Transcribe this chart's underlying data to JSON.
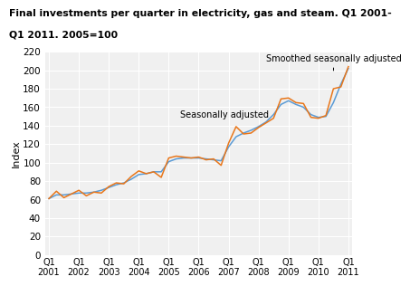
{
  "title_line1": "Final investments per quarter in electricity, gas and steam. Q1 2001-",
  "title_line2": "Q1 2011. 2005=100",
  "ylabel": "Index",
  "xlim": [
    -0.5,
    40.5
  ],
  "ylim": [
    0,
    220
  ],
  "yticks": [
    0,
    20,
    40,
    60,
    80,
    100,
    120,
    140,
    160,
    180,
    200,
    220
  ],
  "xtick_positions": [
    0,
    4,
    8,
    12,
    16,
    20,
    24,
    28,
    32,
    36,
    40
  ],
  "xtick_labels_top": [
    "Q1",
    "Q1",
    "Q1",
    "Q1",
    "Q1",
    "Q1",
    "Q1",
    "Q1",
    "Q1",
    "Q1",
    "Q1"
  ],
  "xtick_labels_bot": [
    "2001",
    "2002",
    "2003",
    "2004",
    "2005",
    "2006",
    "2007",
    "2008",
    "2009",
    "2010",
    "2011"
  ],
  "seasonally_adjusted_color": "#E8761A",
  "smoothed_color": "#5B9BD5",
  "annotation_sa": "Seasonally adjusted",
  "annotation_smooth": "Smoothed seasonally adjusted",
  "bg_color": "#F0F0F0",
  "grid_color": "#FFFFFF",
  "seasonally_adjusted": [
    61,
    69,
    62,
    66,
    70,
    64,
    68,
    67,
    74,
    78,
    77,
    85,
    91,
    88,
    90,
    84,
    105,
    107,
    106,
    105,
    106,
    103,
    104,
    97,
    121,
    139,
    131,
    132,
    138,
    143,
    148,
    169,
    170,
    165,
    164,
    149,
    148,
    151,
    180,
    182,
    204
  ],
  "smoothed_seasonally_adjusted": [
    61,
    65,
    65,
    66,
    67,
    67,
    68,
    70,
    73,
    76,
    78,
    82,
    87,
    88,
    90,
    90,
    101,
    104,
    105,
    105,
    105,
    104,
    103,
    102,
    117,
    128,
    132,
    135,
    139,
    144,
    152,
    163,
    167,
    163,
    160,
    152,
    149,
    150,
    165,
    185,
    202
  ]
}
